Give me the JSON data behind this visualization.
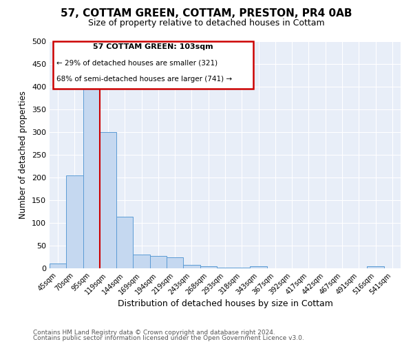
{
  "title": "57, COTTAM GREEN, COTTAM, PRESTON, PR4 0AB",
  "subtitle": "Size of property relative to detached houses in Cottam",
  "xlabel": "Distribution of detached houses by size in Cottam",
  "ylabel": "Number of detached properties",
  "bar_color": "#c5d8f0",
  "bar_edge_color": "#5b9bd5",
  "background_color": "#e8eef8",
  "grid_color": "#ffffff",
  "annotation_box_color": "#ffffff",
  "annotation_border_color": "#cc0000",
  "red_line_color": "#cc0000",
  "categories": [
    "45sqm",
    "70sqm",
    "95sqm",
    "119sqm",
    "144sqm",
    "169sqm",
    "194sqm",
    "219sqm",
    "243sqm",
    "268sqm",
    "293sqm",
    "318sqm",
    "343sqm",
    "367sqm",
    "392sqm",
    "417sqm",
    "442sqm",
    "467sqm",
    "491sqm",
    "516sqm",
    "541sqm"
  ],
  "values": [
    10,
    205,
    400,
    300,
    113,
    30,
    27,
    25,
    8,
    5,
    2,
    1,
    5,
    0,
    0,
    0,
    0,
    0,
    0,
    5,
    0
  ],
  "red_line_x": 2.5,
  "annotation_text_line1": "57 COTTAM GREEN: 103sqm",
  "annotation_text_line2": "← 29% of detached houses are smaller (321)",
  "annotation_text_line3": "68% of semi-detached houses are larger (741) →",
  "ylim": [
    0,
    500
  ],
  "yticks": [
    0,
    50,
    100,
    150,
    200,
    250,
    300,
    350,
    400,
    450,
    500
  ],
  "footer_line1": "Contains HM Land Registry data © Crown copyright and database right 2024.",
  "footer_line2": "Contains public sector information licensed under the Open Government Licence v3.0."
}
